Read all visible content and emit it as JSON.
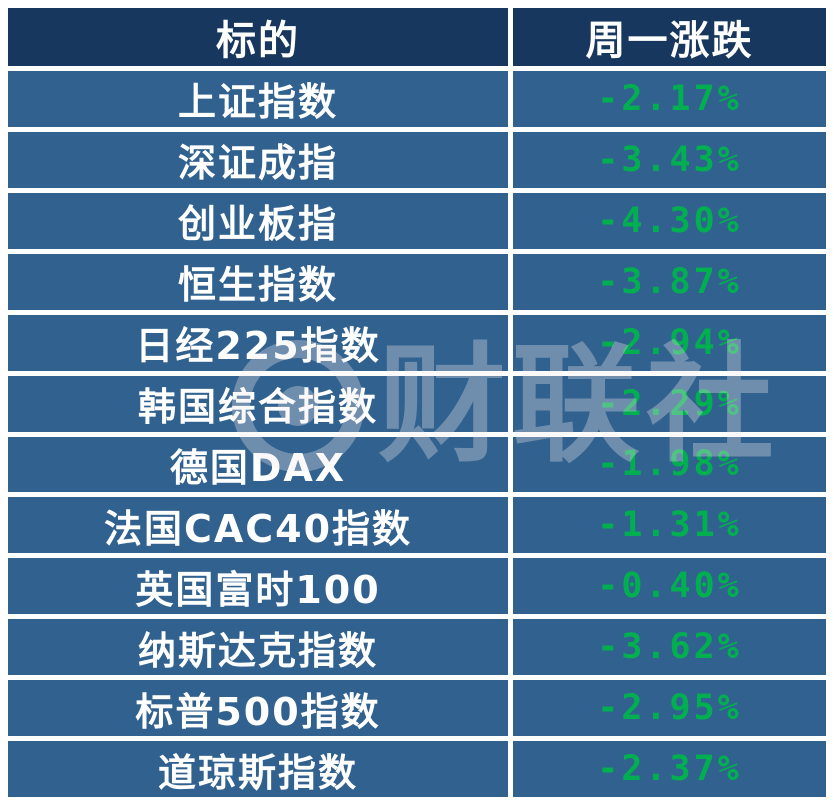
{
  "chart_data": {
    "type": "table",
    "columns": [
      "标的",
      "周一涨跌"
    ],
    "rows": [
      {
        "name": "上证指数",
        "change": "-2.17%"
      },
      {
        "name": "深证成指",
        "change": "-3.43%"
      },
      {
        "name": "创业板指",
        "change": "-4.30%"
      },
      {
        "name": "恒生指数",
        "change": "-3.87%"
      },
      {
        "name": "日经225指数",
        "change": "-2.94%"
      },
      {
        "name": "韩国综合指数",
        "change": "-2.29%"
      },
      {
        "name": "德国DAX",
        "change": "-1.98%"
      },
      {
        "name": "法国CAC40指数",
        "change": "-1.31%"
      },
      {
        "name": "英国富时100",
        "change": "-0.40%"
      },
      {
        "name": "纳斯达克指数",
        "change": "-3.62%"
      },
      {
        "name": "标普500指数",
        "change": "-2.95%"
      },
      {
        "name": "道琼斯指数",
        "change": "-2.37%"
      }
    ]
  },
  "watermark": {
    "text": "财联社"
  },
  "colors": {
    "header_bg": "#17375e",
    "row_bg": "#31618e",
    "name_text": "#ffffff",
    "change_text": "#00b050",
    "grid": "#ffffff"
  }
}
